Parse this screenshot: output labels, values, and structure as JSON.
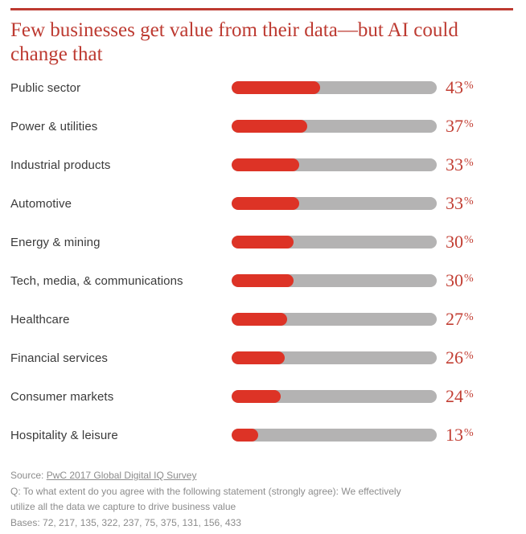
{
  "chart_data": {
    "type": "bar",
    "orientation": "horizontal",
    "title": "Few businesses get value from their data—but AI could change that",
    "categories": [
      "Public sector",
      "Power & utilities",
      "Industrial products",
      "Automotive",
      "Energy & mining",
      "Tech, media, & communications",
      "Healthcare",
      "Financial services",
      "Consumer markets",
      "Hospitality & leisure"
    ],
    "values": [
      43,
      37,
      33,
      33,
      30,
      30,
      27,
      26,
      24,
      13
    ],
    "percent_suffix": "%",
    "xlim": [
      0,
      100
    ],
    "value_label_position": "right",
    "grid": "off",
    "legend": "none",
    "colors": {
      "bar_fill": "#dd3326",
      "bar_track": "#b4b3b3",
      "title_red": "#bd3a31",
      "value_red": "#c23e33"
    }
  },
  "footer": {
    "source_prefix": "Source: ",
    "source_link_text": "PwC 2017 Global Digital IQ Survey",
    "question_text": "Q: To what extent do you agree with the following statement (strongly agree): We effectively utilize all the data we capture to drive business value",
    "bases_text": "Bases: 72, 217, 135, 322, 237, 75, 375, 131, 156, 433"
  }
}
